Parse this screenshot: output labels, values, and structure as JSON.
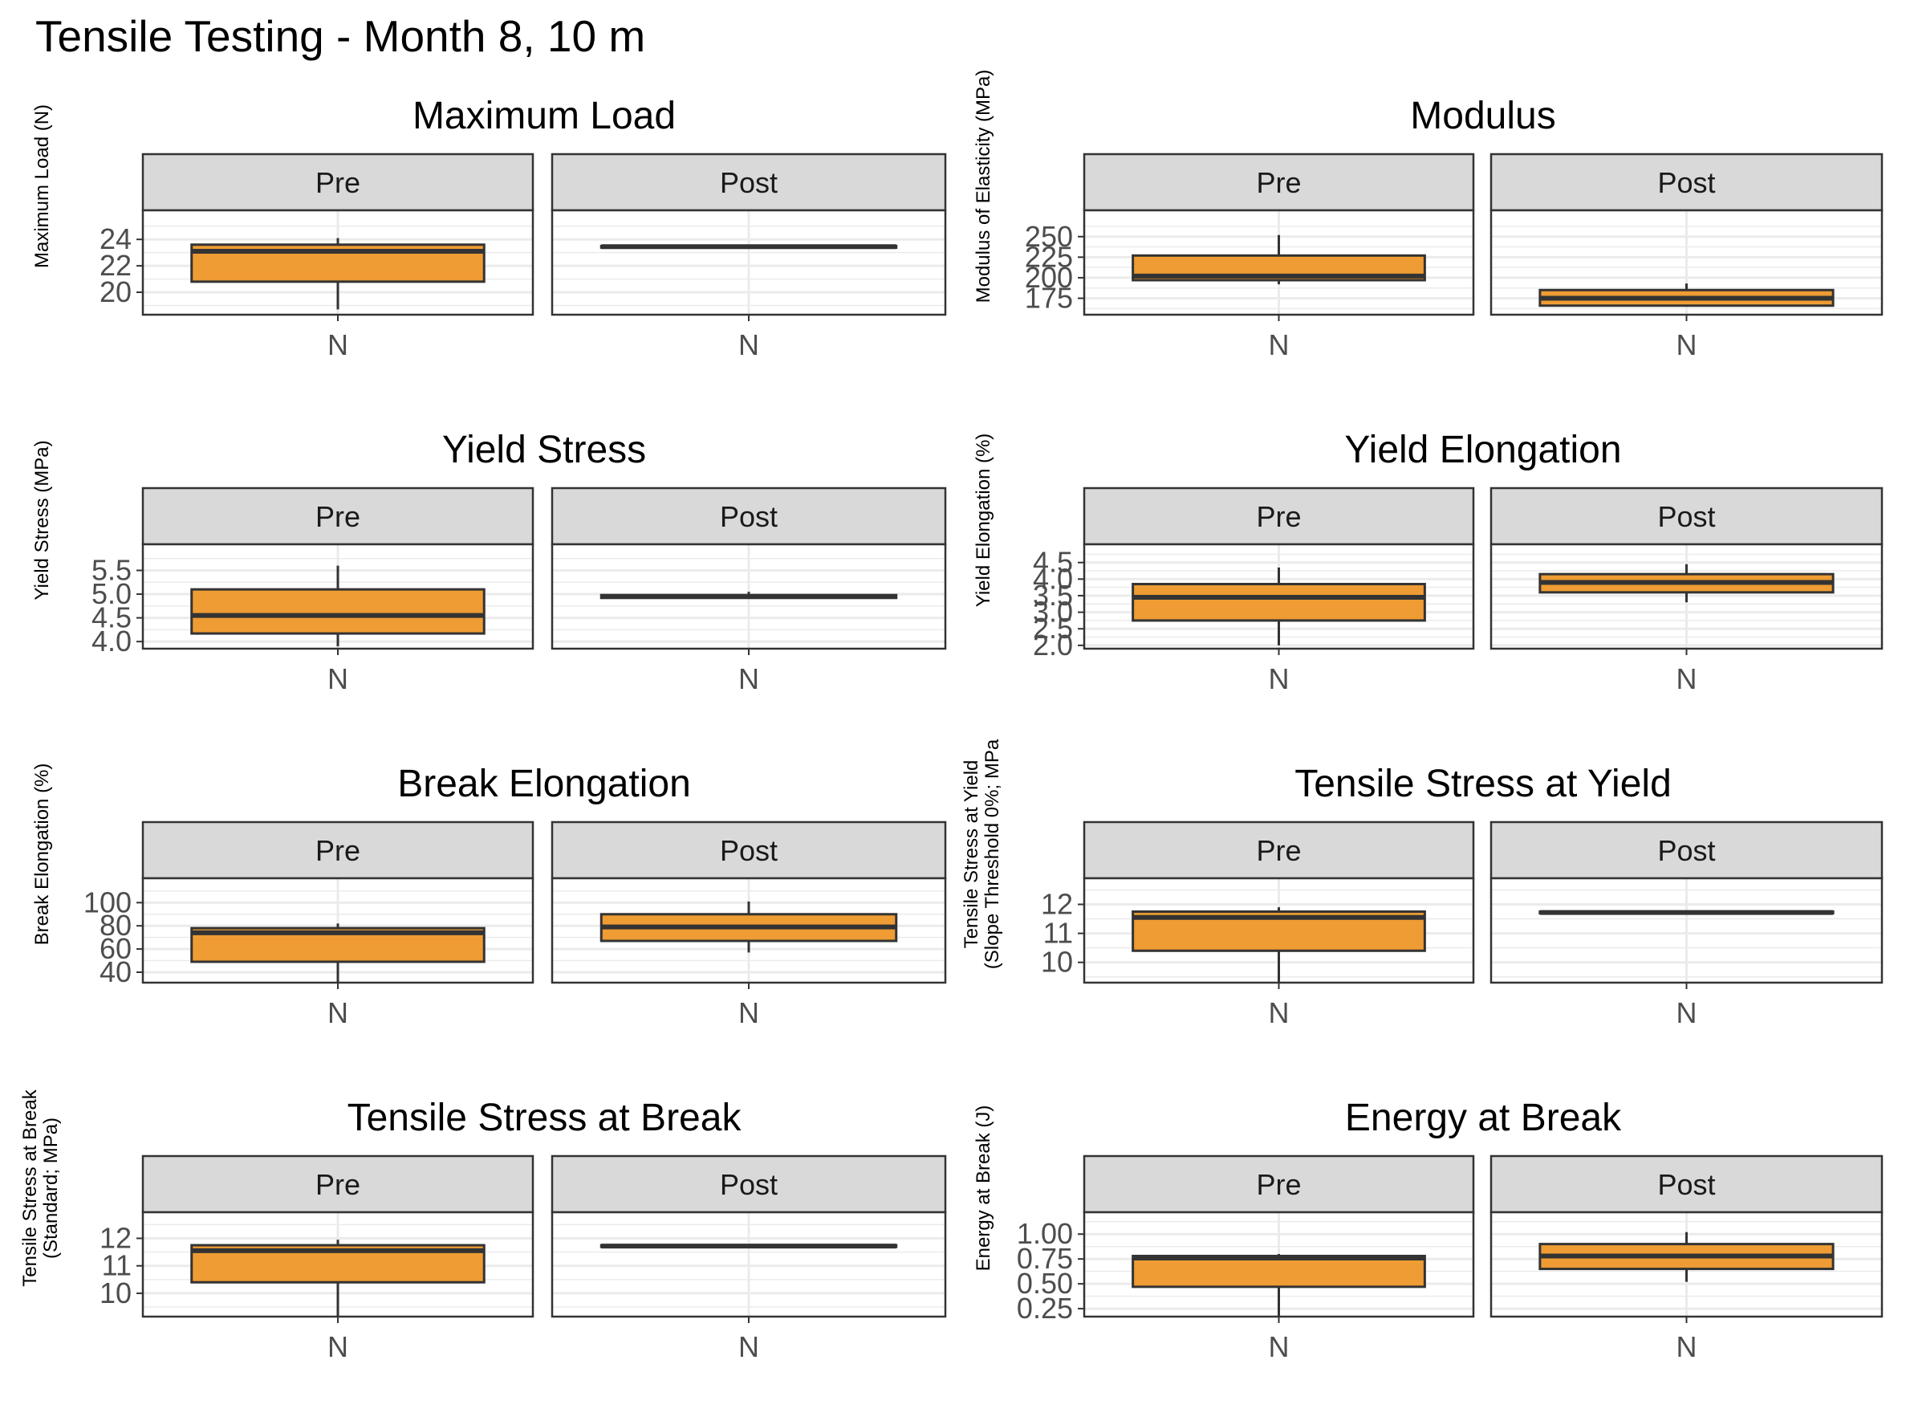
{
  "title": "Tensile Testing - Month 8, 10 m",
  "colors": {
    "box_fill": "#EE9C33",
    "box_line": "#333333",
    "strip_fill": "#D9D9D9",
    "panel_border": "#333333",
    "grid": "#EBEBEB"
  },
  "chart_data": [
    {
      "type": "boxplot",
      "title": "Maximum Load",
      "ylabel": [
        "Maximum Load (N)"
      ],
      "ylim": [
        18.3,
        26.2
      ],
      "yticks": [
        20,
        22,
        24
      ],
      "ytick_labels": [
        "20",
        "22",
        "24"
      ],
      "facets": [
        {
          "label": "Pre",
          "category": "N",
          "stats": {
            "min": 18.7,
            "q1": 20.8,
            "median": 23.1,
            "q3": 23.6,
            "max": 24.1
          }
        },
        {
          "label": "Post",
          "category": "N",
          "stats": {
            "min": 23.4,
            "q1": 23.4,
            "median": 23.45,
            "q3": 23.5,
            "max": 23.5
          }
        }
      ]
    },
    {
      "type": "boxplot",
      "title": "Modulus",
      "ylabel": [
        "Modulus of Elasticity (MPa)"
      ],
      "ylim": [
        155,
        282
      ],
      "yticks": [
        175,
        200,
        225,
        250
      ],
      "ytick_labels": [
        "175",
        "200",
        "225",
        "250"
      ],
      "facets": [
        {
          "label": "Pre",
          "category": "N",
          "stats": {
            "min": 192,
            "q1": 197,
            "median": 202,
            "q3": 227,
            "max": 252
          }
        },
        {
          "label": "Post",
          "category": "N",
          "stats": {
            "min": 166,
            "q1": 166,
            "median": 175,
            "q3": 185,
            "max": 193
          }
        }
      ]
    },
    {
      "type": "boxplot",
      "title": "Yield Stress",
      "ylabel": [
        "Yield Stress (MPa)"
      ],
      "ylim": [
        3.85,
        6.05
      ],
      "yticks": [
        4.0,
        4.5,
        5.0,
        5.5
      ],
      "ytick_labels": [
        "4.0",
        "4.5",
        "5.0",
        "5.5"
      ],
      "facets": [
        {
          "label": "Pre",
          "category": "N",
          "stats": {
            "min": 3.9,
            "q1": 4.17,
            "median": 4.55,
            "q3": 5.1,
            "max": 5.6
          }
        },
        {
          "label": "Post",
          "category": "N",
          "stats": {
            "min": 4.92,
            "q1": 4.92,
            "median": 4.95,
            "q3": 4.98,
            "max": 5.05
          }
        }
      ]
    },
    {
      "type": "boxplot",
      "title": "Yield Elongation",
      "ylabel": [
        "Yield Elongation (%)"
      ],
      "ylim": [
        1.9,
        5.05
      ],
      "yticks": [
        2.0,
        2.5,
        3.0,
        3.5,
        4.0,
        4.5
      ],
      "ytick_labels": [
        "2.0",
        "2.5",
        "3.0",
        "3.5",
        "4.0",
        "4.5"
      ],
      "facets": [
        {
          "label": "Pre",
          "category": "N",
          "stats": {
            "min": 2.0,
            "q1": 2.75,
            "median": 3.45,
            "q3": 3.85,
            "max": 4.35
          }
        },
        {
          "label": "Post",
          "category": "N",
          "stats": {
            "min": 3.3,
            "q1": 3.6,
            "median": 3.9,
            "q3": 4.15,
            "max": 4.45
          }
        }
      ]
    },
    {
      "type": "boxplot",
      "title": "Break Elongation",
      "ylabel": [
        "Break Elongation (%)"
      ],
      "ylim": [
        31,
        121
      ],
      "yticks": [
        40,
        60,
        80,
        100
      ],
      "ytick_labels": [
        "40",
        "60",
        "80",
        "100"
      ],
      "facets": [
        {
          "label": "Pre",
          "category": "N",
          "stats": {
            "min": 31,
            "q1": 49,
            "median": 74,
            "q3": 78,
            "max": 82
          }
        },
        {
          "label": "Post",
          "category": "N",
          "stats": {
            "min": 57,
            "q1": 67,
            "median": 79,
            "q3": 90,
            "max": 101
          }
        }
      ]
    },
    {
      "type": "boxplot",
      "title": "Tensile Stress at Yield",
      "ylabel": [
        "Tensile Stress at Yield",
        "(Slope Threshold 0%; MPa"
      ],
      "ylim": [
        9.3,
        12.9
      ],
      "yticks": [
        10,
        11,
        12
      ],
      "ytick_labels": [
        "10",
        "11",
        "12"
      ],
      "facets": [
        {
          "label": "Pre",
          "category": "N",
          "stats": {
            "min": 9.3,
            "q1": 10.4,
            "median": 11.55,
            "q3": 11.75,
            "max": 11.9
          }
        },
        {
          "label": "Post",
          "category": "N",
          "stats": {
            "min": 11.7,
            "q1": 11.7,
            "median": 11.72,
            "q3": 11.75,
            "max": 11.75
          }
        }
      ]
    },
    {
      "type": "boxplot",
      "title": "Tensile Stress at Break",
      "ylabel": [
        "Tensile Stress at Break",
        "(Standard; MPa)"
      ],
      "ylim": [
        9.15,
        12.95
      ],
      "yticks": [
        10,
        11,
        12
      ],
      "ytick_labels": [
        "10",
        "11",
        "12"
      ],
      "facets": [
        {
          "label": "Pre",
          "category": "N",
          "stats": {
            "min": 9.15,
            "q1": 10.4,
            "median": 11.55,
            "q3": 11.75,
            "max": 11.95
          }
        },
        {
          "label": "Post",
          "category": "N",
          "stats": {
            "min": 11.7,
            "q1": 11.7,
            "median": 11.72,
            "q3": 11.75,
            "max": 11.75
          }
        }
      ]
    },
    {
      "type": "boxplot",
      "title": "Energy at Break",
      "ylabel": [
        "Energy at Break (J)"
      ],
      "ylim": [
        0.17,
        1.22
      ],
      "yticks": [
        0.25,
        0.5,
        0.75,
        1.0
      ],
      "ytick_labels": [
        "0.25",
        "0.50",
        "0.75",
        "1.00"
      ],
      "facets": [
        {
          "label": "Pre",
          "category": "N",
          "stats": {
            "min": 0.17,
            "q1": 0.47,
            "median": 0.76,
            "q3": 0.78,
            "max": 0.8
          }
        },
        {
          "label": "Post",
          "category": "N",
          "stats": {
            "min": 0.52,
            "q1": 0.65,
            "median": 0.78,
            "q3": 0.9,
            "max": 1.02
          }
        }
      ]
    }
  ]
}
